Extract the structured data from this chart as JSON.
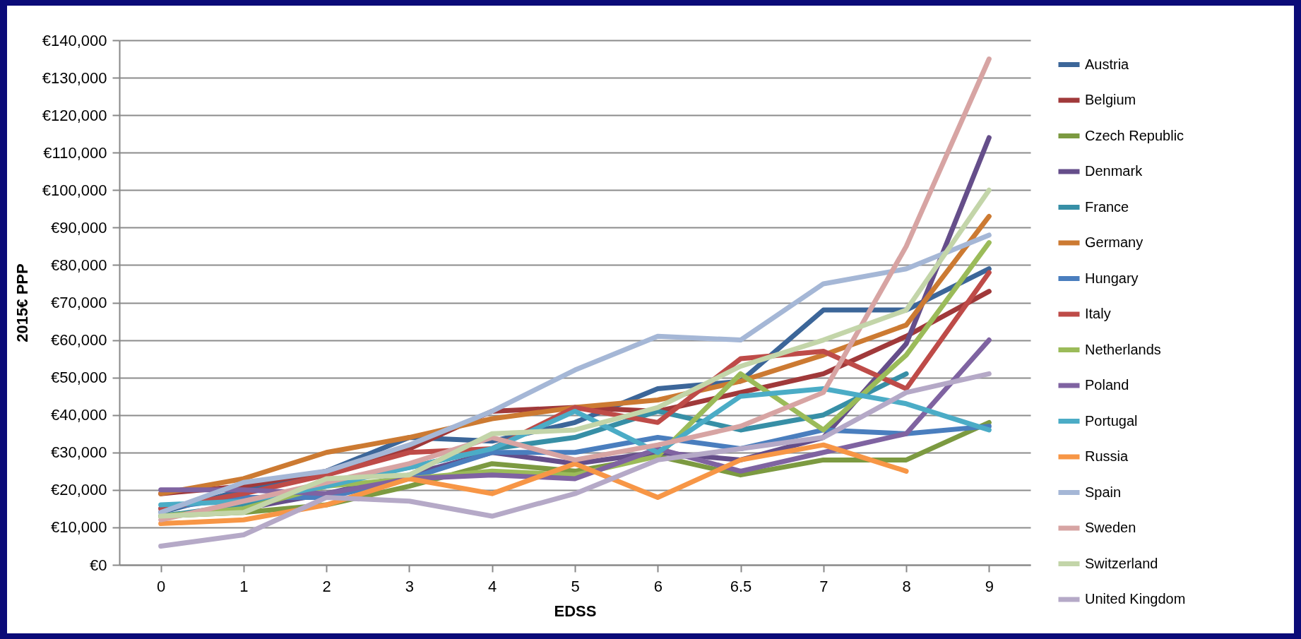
{
  "chart_data": {
    "type": "line",
    "xlabel": "EDSS",
    "ylabel": "2015€ PPP",
    "categories": [
      "0",
      "1",
      "2",
      "3",
      "4",
      "5",
      "6",
      "6.5",
      "7",
      "8",
      "9"
    ],
    "ylim": [
      0,
      140000
    ],
    "yticks": [
      {
        "value": 0,
        "label": "€0"
      },
      {
        "value": 10000,
        "label": "€10,000"
      },
      {
        "value": 20000,
        "label": "€20,000"
      },
      {
        "value": 30000,
        "label": "€30,000"
      },
      {
        "value": 40000,
        "label": "€40,000"
      },
      {
        "value": 50000,
        "label": "€50,000"
      },
      {
        "value": 60000,
        "label": "€60,000"
      },
      {
        "value": 70000,
        "label": "€70,000"
      },
      {
        "value": 80000,
        "label": "€80,000"
      },
      {
        "value": 90000,
        "label": "€90,000"
      },
      {
        "value": 100000,
        "label": "€100,000"
      },
      {
        "value": 110000,
        "label": "€110,000"
      },
      {
        "value": 120000,
        "label": "€120,000"
      },
      {
        "value": 130000,
        "label": "€130,000"
      },
      {
        "value": 140000,
        "label": "€140,000"
      }
    ],
    "grid": "y",
    "legend": "right",
    "series": [
      {
        "name": "Austria",
        "color": "#3c6699",
        "values": [
          14000,
          20000,
          25000,
          34000,
          33000,
          38000,
          47000,
          49000,
          68000,
          68000,
          79000
        ]
      },
      {
        "name": "Belgium",
        "color": "#a0393a",
        "values": [
          19000,
          21000,
          25000,
          31000,
          41000,
          42000,
          41000,
          46000,
          51000,
          61000,
          73000
        ]
      },
      {
        "name": "Czech Republic",
        "color": "#7c9a41",
        "values": [
          13000,
          14000,
          16000,
          21000,
          27000,
          25000,
          29000,
          24000,
          28000,
          28000,
          38000
        ]
      },
      {
        "name": "Denmark",
        "color": "#654e8a",
        "values": [
          null,
          15000,
          19000,
          24000,
          30000,
          27000,
          30000,
          28000,
          34000,
          59000,
          114000
        ]
      },
      {
        "name": "France",
        "color": "#378fa6",
        "values": [
          13000,
          16000,
          22000,
          26000,
          31000,
          34000,
          41000,
          36000,
          40000,
          51000,
          null
        ]
      },
      {
        "name": "Germany",
        "color": "#cc7a32",
        "values": [
          19000,
          23000,
          30000,
          34000,
          39000,
          42000,
          44000,
          49000,
          56000,
          64000,
          93000
        ]
      },
      {
        "name": "Hungary",
        "color": "#4a7ebe",
        "values": [
          15000,
          18000,
          18000,
          23000,
          30000,
          30000,
          34000,
          31000,
          36000,
          35000,
          37000
        ]
      },
      {
        "name": "Italy",
        "color": "#be4b48",
        "values": [
          15000,
          19000,
          24000,
          30000,
          31000,
          42000,
          38000,
          55000,
          57000,
          47000,
          78000
        ]
      },
      {
        "name": "Netherlands",
        "color": "#9bbb59",
        "values": [
          13000,
          15000,
          21000,
          23000,
          25000,
          24000,
          29000,
          51000,
          36000,
          56000,
          86000
        ]
      },
      {
        "name": "Poland",
        "color": "#7f63a1",
        "values": [
          20000,
          20000,
          19000,
          23000,
          24000,
          23000,
          31000,
          25000,
          30000,
          35000,
          60000
        ]
      },
      {
        "name": "Portugal",
        "color": "#4bacc6",
        "values": [
          16000,
          17000,
          21000,
          26000,
          31000,
          41000,
          30000,
          45000,
          47000,
          43000,
          36000
        ]
      },
      {
        "name": "Russia",
        "color": "#f79646",
        "values": [
          11000,
          12000,
          16000,
          23000,
          19000,
          27000,
          18000,
          28000,
          32000,
          25000,
          null
        ]
      },
      {
        "name": "Spain",
        "color": "#a5b7d6",
        "values": [
          14000,
          22000,
          25000,
          32000,
          41000,
          52000,
          61000,
          60000,
          75000,
          79000,
          88000
        ]
      },
      {
        "name": "Sweden",
        "color": "#d7a4a3",
        "values": [
          12000,
          17000,
          22000,
          27000,
          34000,
          28000,
          32000,
          37000,
          46000,
          85000,
          135000
        ]
      },
      {
        "name": "Switzerland",
        "color": "#c3d5a9",
        "values": [
          13000,
          14000,
          23000,
          24000,
          35000,
          36000,
          42000,
          53000,
          60000,
          68000,
          100000
        ]
      },
      {
        "name": "United Kingdom",
        "color": "#b5a9c7",
        "values": [
          5000,
          8000,
          18000,
          17000,
          13000,
          19000,
          28000,
          31000,
          34000,
          46000,
          51000
        ]
      }
    ]
  }
}
